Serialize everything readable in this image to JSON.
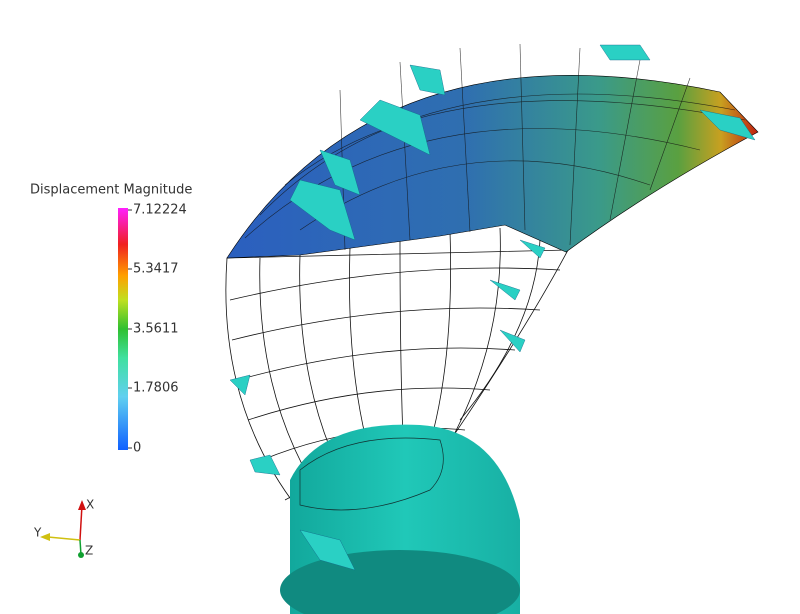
{
  "colorbar": {
    "title": "Displacement Magnitude",
    "labels": [
      "7.12224",
      "5.3417",
      "3.5611",
      "1.7806",
      "0"
    ]
  },
  "axes": {
    "labels": [
      "X",
      "Y",
      "Z"
    ]
  }
}
